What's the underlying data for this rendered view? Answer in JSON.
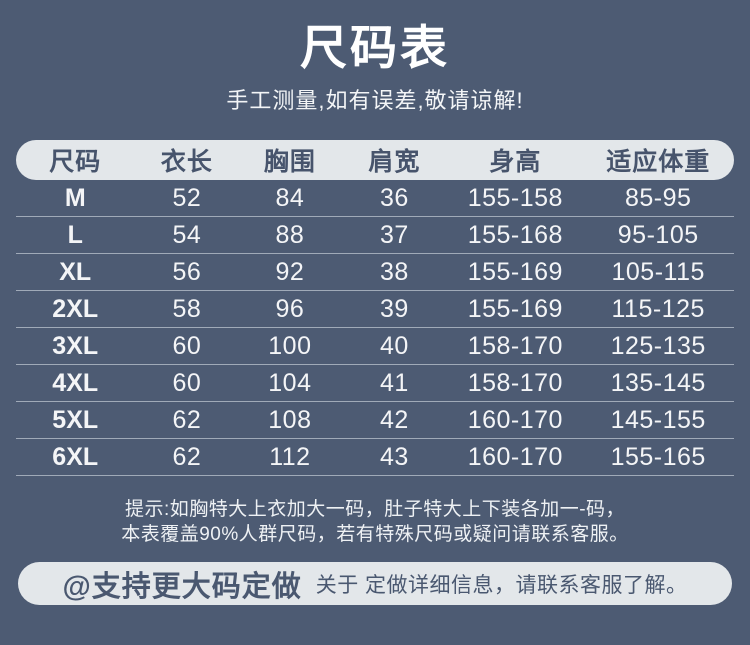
{
  "header": {
    "title": "尺码表",
    "subtitle": "手工测量,如有误差,敬请谅解!"
  },
  "table": {
    "headers": [
      "尺码",
      "衣长",
      "胸围",
      "肩宽",
      "身高",
      "适应体重"
    ],
    "rows": [
      [
        "M",
        "52",
        "84",
        "36",
        "155-158",
        "85-95"
      ],
      [
        "L",
        "54",
        "88",
        "37",
        "155-168",
        "95-105"
      ],
      [
        "XL",
        "56",
        "92",
        "38",
        "155-169",
        "105-115"
      ],
      [
        "2XL",
        "58",
        "96",
        "39",
        "155-169",
        "115-125"
      ],
      [
        "3XL",
        "60",
        "100",
        "40",
        "158-170",
        "125-135"
      ],
      [
        "4XL",
        "60",
        "104",
        "41",
        "158-170",
        "135-145"
      ],
      [
        "5XL",
        "62",
        "108",
        "42",
        "160-170",
        "145-155"
      ],
      [
        "6XL",
        "62",
        "112",
        "43",
        "160-170",
        "155-165"
      ]
    ]
  },
  "note": {
    "line1": "提示:如胸特大上衣加大一码，肚子特大上下装各加一-码，",
    "line2": "本表覆盖90%人群尺码，若有特殊尺码或疑问请联系客服。"
  },
  "footer": {
    "badge": "@支持更大码定做",
    "text": "关于 定做详细信息，请联系客服了解。"
  },
  "colors": {
    "background": "#4d5b73",
    "pill": "#e3e7ea",
    "dark_text": "#47546c",
    "light_text": "#f4f5f7",
    "separator": "rgba(230,235,240,0.55)"
  },
  "chart_data": {
    "type": "table",
    "title": "尺码表",
    "subtitle": "手工测量,如有误差,敬请谅解!",
    "columns": [
      "尺码",
      "衣长",
      "胸围",
      "肩宽",
      "身高",
      "适应体重"
    ],
    "rows": [
      {
        "尺码": "M",
        "衣长": 52,
        "胸围": 84,
        "肩宽": 36,
        "身高": "155-158",
        "适应体重": "85-95"
      },
      {
        "尺码": "L",
        "衣长": 54,
        "胸围": 88,
        "肩宽": 37,
        "身高": "155-168",
        "适应体重": "95-105"
      },
      {
        "尺码": "XL",
        "衣长": 56,
        "胸围": 92,
        "肩宽": 38,
        "身高": "155-169",
        "适应体重": "105-115"
      },
      {
        "尺码": "2XL",
        "衣长": 58,
        "胸围": 96,
        "肩宽": 39,
        "身高": "155-169",
        "适应体重": "115-125"
      },
      {
        "尺码": "3XL",
        "衣长": 60,
        "胸围": 100,
        "肩宽": 40,
        "身高": "158-170",
        "适应体重": "125-135"
      },
      {
        "尺码": "4XL",
        "衣长": 60,
        "胸围": 104,
        "肩宽": 41,
        "身高": "158-170",
        "适应体重": "135-145"
      },
      {
        "尺码": "5XL",
        "衣长": 62,
        "胸围": 108,
        "肩宽": 42,
        "身高": "160-170",
        "适应体重": "145-155"
      },
      {
        "尺码": "6XL",
        "衣长": 62,
        "胸围": 112,
        "肩宽": 43,
        "身高": "160-170",
        "适应体重": "155-165"
      }
    ],
    "notes": [
      "提示:如胸特大上衣加大一码，肚子特大上下装各加一-码，",
      "本表覆盖90%人群尺码，若有特殊尺码或疑问请联系客服。"
    ],
    "footer": "@支持更大码定做 关于 定做详细信息，请联系客服了解。"
  }
}
